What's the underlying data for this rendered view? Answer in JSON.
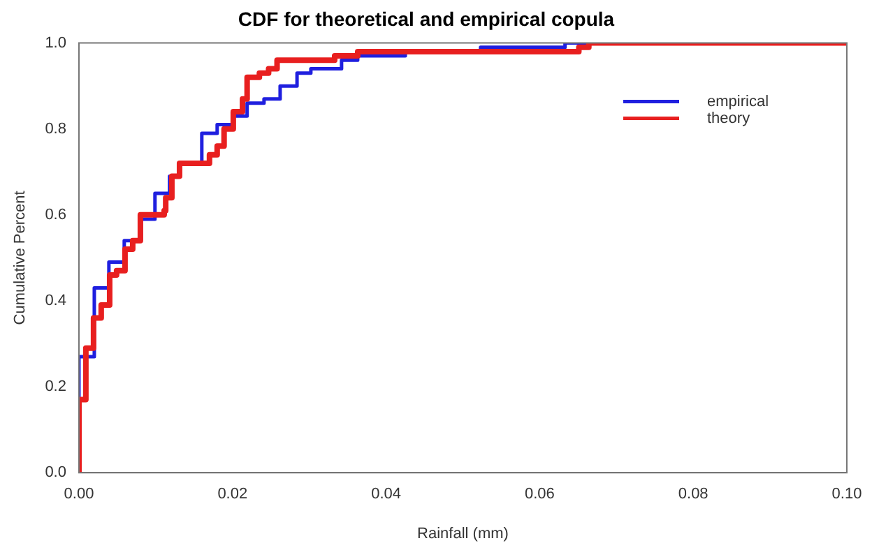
{
  "chart_data": {
    "type": "step",
    "title": "CDF for theoretical and empirical copula",
    "xlabel": "Rainfall (mm)",
    "ylabel": "Cumulative Percent",
    "series": [
      {
        "name": "empirical",
        "color": "#1f1fdf",
        "x": [
          0,
          0,
          0.002,
          0.0039,
          0.0059,
          0.0081,
          0.0099,
          0.0118,
          0.013,
          0.016,
          0.018,
          0.0201,
          0.0219,
          0.0241,
          0.0262,
          0.0284,
          0.0302,
          0.0342,
          0.0363,
          0.0425,
          0.0523,
          0.0633,
          0.1
        ],
        "values": [
          0,
          0.27,
          0.43,
          0.49,
          0.54,
          0.59,
          0.65,
          0.69,
          0.72,
          0.79,
          0.81,
          0.83,
          0.86,
          0.87,
          0.9,
          0.93,
          0.94,
          0.96,
          0.97,
          0.98,
          0.99,
          1,
          1
        ]
      },
      {
        "name": "theory",
        "color": "#e81f1f",
        "x": [
          0,
          0,
          0.0009,
          0.0019,
          0.0029,
          0.004,
          0.0049,
          0.006,
          0.007,
          0.008,
          0.0111,
          0.0113,
          0.0121,
          0.0131,
          0.017,
          0.018,
          0.0189,
          0.0201,
          0.0213,
          0.0219,
          0.0235,
          0.0247,
          0.0258,
          0.0333,
          0.0363,
          0.0651,
          0.0664,
          0.1
        ],
        "values": [
          0,
          0.17,
          0.29,
          0.36,
          0.39,
          0.46,
          0.47,
          0.52,
          0.54,
          0.6,
          0.61,
          0.64,
          0.69,
          0.72,
          0.74,
          0.76,
          0.8,
          0.84,
          0.87,
          0.92,
          0.93,
          0.94,
          0.96,
          0.97,
          0.98,
          0.99,
          1,
          1
        ]
      }
    ],
    "xlim": [
      0,
      0.1
    ],
    "xticks": [
      {
        "value": 0,
        "label": "0.00"
      },
      {
        "value": 0.02,
        "label": "0.02"
      },
      {
        "value": 0.04,
        "label": "0.04"
      },
      {
        "value": 0.06,
        "label": "0.06"
      },
      {
        "value": 0.08,
        "label": "0.08"
      },
      {
        "value": 0.1,
        "label": "0.10"
      }
    ],
    "ylim": [
      0,
      1
    ],
    "yticks": [
      {
        "value": 0,
        "label": "0.0"
      },
      {
        "value": 0.2,
        "label": "0.2"
      },
      {
        "value": 0.4,
        "label": "0.4"
      },
      {
        "value": 0.6,
        "label": "0.6"
      },
      {
        "value": 0.8,
        "label": "0.8"
      },
      {
        "value": 1,
        "label": "1.0"
      }
    ],
    "legend": "top right",
    "grid": false,
    "marker": "none",
    "line_style": "solid"
  }
}
